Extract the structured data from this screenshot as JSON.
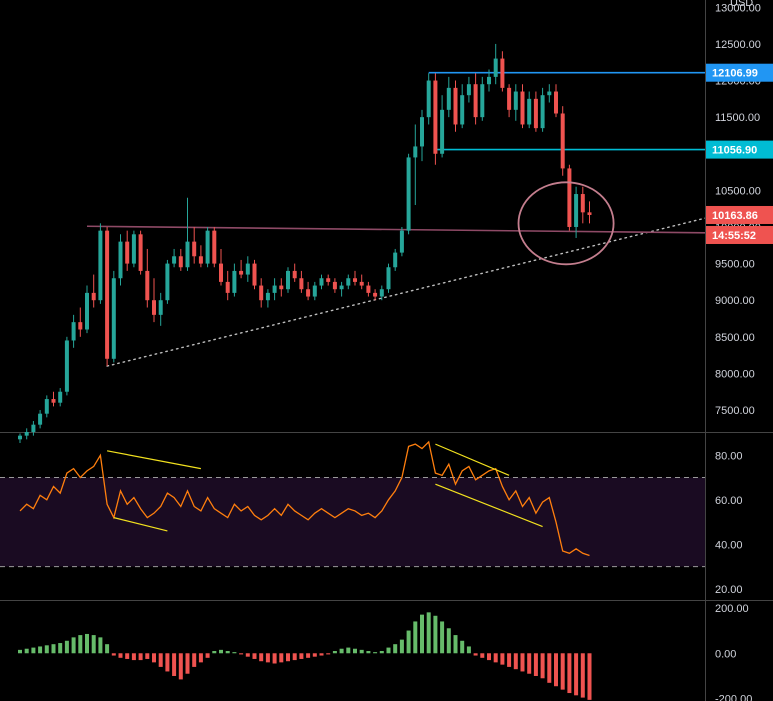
{
  "chart_data": {
    "type": "candlestick",
    "currency": "USD",
    "colors": {
      "up": "#26a69a",
      "down": "#ef5350",
      "background": "#000000",
      "rsi_band": "#1a0b22",
      "rsi_line": "#ff7f0e",
      "divergence": "#f2e11e",
      "resistance": "#2196f3",
      "support": "#00bcd4",
      "horizontal": "#8e4a66",
      "circle": "#c47e8e",
      "hist_up": "#66bb6a",
      "hist_down": "#ef5350",
      "axis_text": "#d1d4dc",
      "price_tag_red": "#ef5350",
      "divider": "#444444"
    },
    "price_axis": {
      "ticks": [
        7500,
        8000,
        8500,
        9000,
        9500,
        10000,
        10500,
        11000,
        11500,
        12000,
        12500,
        13000
      ],
      "tick_labels": [
        "7500.00",
        "8000.00",
        "8500.00",
        "9000.00",
        "9500.00",
        "10000.00",
        "10500.00",
        "11000.00",
        "11500.00",
        "12000.00",
        "12500.00",
        "13000.00"
      ],
      "range": [
        7200,
        13100
      ]
    },
    "price_tags": [
      {
        "label": "12106.99",
        "value": 12106.99,
        "color": "#2196f3"
      },
      {
        "label": "11056.90",
        "value": 11056.9,
        "color": "#00bcd4"
      },
      {
        "label": "10163.86",
        "value": 10163.86,
        "color": "#ef5350"
      },
      {
        "label": "14:55:52",
        "value": 9880,
        "color": "#ef5350"
      }
    ],
    "levels": [
      {
        "name": "top-resistance",
        "value": 12106.99,
        "from": 61,
        "to": 96,
        "color": "#2196f3"
      },
      {
        "name": "support",
        "value": 11056.9,
        "from": 62,
        "to": 96,
        "color": "#00bcd4"
      },
      {
        "name": "horizontal-level",
        "from": 10,
        "from_value": 10010,
        "to": 96,
        "to_value": 9920,
        "color": "#8e4a66"
      }
    ],
    "trendline": {
      "from": 13,
      "from_value": 8100,
      "to": 104,
      "to_value": 10160
    },
    "circle": {
      "center_index": 81.5,
      "center_value": 10050,
      "rx_bars": 6.5,
      "ry_value": 560
    },
    "candles": [
      [
        7100,
        7180,
        7050,
        7150
      ],
      [
        7150,
        7250,
        7100,
        7200
      ],
      [
        7200,
        7350,
        7150,
        7300
      ],
      [
        7300,
        7500,
        7250,
        7450
      ],
      [
        7450,
        7700,
        7400,
        7650
      ],
      [
        7650,
        7750,
        7550,
        7600
      ],
      [
        7600,
        7800,
        7550,
        7750
      ],
      [
        7750,
        8500,
        7700,
        8450
      ],
      [
        8450,
        8800,
        8350,
        8700
      ],
      [
        8700,
        8900,
        8500,
        8600
      ],
      [
        8600,
        9200,
        8550,
        9100
      ],
      [
        9100,
        9350,
        8900,
        9000
      ],
      [
        9000,
        10050,
        8950,
        9950
      ],
      [
        9950,
        10000,
        8100,
        8200
      ],
      [
        8200,
        9400,
        8150,
        9300
      ],
      [
        9300,
        9900,
        9200,
        9800
      ],
      [
        9800,
        9950,
        9400,
        9500
      ],
      [
        9500,
        9950,
        9450,
        9900
      ],
      [
        9900,
        9950,
        9350,
        9400
      ],
      [
        9400,
        9700,
        8900,
        9000
      ],
      [
        9000,
        9300,
        8700,
        8800
      ],
      [
        8800,
        9100,
        8650,
        9000
      ],
      [
        9000,
        9550,
        8950,
        9500
      ],
      [
        9500,
        9700,
        9450,
        9600
      ],
      [
        9600,
        9700,
        9400,
        9450
      ],
      [
        9450,
        10400,
        9400,
        9800
      ],
      [
        9800,
        10000,
        9500,
        9600
      ],
      [
        9600,
        9750,
        9450,
        9500
      ],
      [
        9500,
        10000,
        9450,
        9950
      ],
      [
        9950,
        10000,
        9450,
        9500
      ],
      [
        9500,
        9700,
        9200,
        9250
      ],
      [
        9250,
        9400,
        9000,
        9100
      ],
      [
        9100,
        9500,
        9050,
        9400
      ],
      [
        9400,
        9550,
        9300,
        9350
      ],
      [
        9350,
        9600,
        9250,
        9500
      ],
      [
        9500,
        9550,
        9150,
        9200
      ],
      [
        9200,
        9300,
        8900,
        9000
      ],
      [
        9000,
        9150,
        8900,
        9100
      ],
      [
        9100,
        9300,
        9000,
        9200
      ],
      [
        9200,
        9300,
        9050,
        9150
      ],
      [
        9150,
        9450,
        9100,
        9400
      ],
      [
        9400,
        9500,
        9250,
        9300
      ],
      [
        9300,
        9400,
        9100,
        9150
      ],
      [
        9150,
        9250,
        9000,
        9050
      ],
      [
        9050,
        9250,
        9000,
        9200
      ],
      [
        9200,
        9350,
        9150,
        9300
      ],
      [
        9300,
        9350,
        9200,
        9250
      ],
      [
        9250,
        9300,
        9100,
        9150
      ],
      [
        9150,
        9250,
        9050,
        9200
      ],
      [
        9200,
        9350,
        9150,
        9300
      ],
      [
        9300,
        9400,
        9200,
        9250
      ],
      [
        9250,
        9350,
        9150,
        9200
      ],
      [
        9200,
        9250,
        9050,
        9100
      ],
      [
        9100,
        9150,
        9000,
        9050
      ],
      [
        9050,
        9200,
        9000,
        9150
      ],
      [
        9150,
        9500,
        9100,
        9450
      ],
      [
        9450,
        9700,
        9400,
        9650
      ],
      [
        9650,
        10000,
        9600,
        9950
      ],
      [
        9950,
        11000,
        9900,
        10950
      ],
      [
        10950,
        11400,
        10300,
        11100
      ],
      [
        11100,
        11600,
        10900,
        11500
      ],
      [
        11500,
        12100,
        11400,
        12000
      ],
      [
        12000,
        12100,
        10850,
        11000
      ],
      [
        11000,
        11800,
        10950,
        11600
      ],
      [
        11600,
        12050,
        11500,
        11900
      ],
      [
        11900,
        12000,
        11300,
        11400
      ],
      [
        11400,
        11950,
        11350,
        11800
      ],
      [
        11800,
        12050,
        11700,
        11950
      ],
      [
        11950,
        12100,
        11400,
        11500
      ],
      [
        11500,
        12050,
        11450,
        11950
      ],
      [
        11950,
        12150,
        11850,
        12050
      ],
      [
        12050,
        12500,
        11950,
        12300
      ],
      [
        12300,
        12400,
        11850,
        11900
      ],
      [
        11900,
        11950,
        11500,
        11600
      ],
      [
        11600,
        11950,
        11450,
        11850
      ],
      [
        11850,
        11950,
        11350,
        11400
      ],
      [
        11400,
        11850,
        11350,
        11750
      ],
      [
        11750,
        11850,
        11300,
        11350
      ],
      [
        11350,
        11900,
        11300,
        11800
      ],
      [
        11800,
        11950,
        11700,
        11850
      ],
      [
        11850,
        11950,
        11500,
        11550
      ],
      [
        11550,
        11650,
        10700,
        10800
      ],
      [
        10800,
        10850,
        9950,
        10000
      ],
      [
        10000,
        10550,
        9850,
        10450
      ],
      [
        10450,
        10550,
        10050,
        10200
      ],
      [
        10200,
        10350,
        10050,
        10163.86
      ]
    ],
    "rsi": {
      "axis_ticks": [
        20,
        40,
        60,
        80
      ],
      "tick_labels": [
        "20.00",
        "40.00",
        "60.00",
        "80.00"
      ],
      "range": [
        15,
        90
      ],
      "band": [
        30,
        70
      ],
      "values": [
        55,
        58,
        56,
        62,
        60,
        66,
        63,
        72,
        74,
        70,
        73,
        75,
        80,
        58,
        52,
        64,
        58,
        61,
        56,
        52,
        54,
        57,
        63,
        61,
        57,
        64,
        57,
        55,
        61,
        56,
        54,
        52,
        58,
        55,
        57,
        53,
        51,
        53,
        56,
        53,
        58,
        55,
        53,
        51,
        54,
        56,
        54,
        52,
        54,
        56,
        55,
        53,
        54,
        52,
        55,
        60,
        64,
        70,
        84,
        85,
        83,
        86,
        72,
        71,
        76,
        67,
        73,
        75,
        69,
        71,
        73,
        74,
        66,
        60,
        64,
        57,
        61,
        54,
        59,
        61,
        50,
        37,
        36,
        38,
        36,
        35
      ],
      "divergence_lines": [
        {
          "from": 13,
          "from_value": 82,
          "to": 27,
          "to_value": 74
        },
        {
          "from": 14,
          "from_value": 52,
          "to": 22,
          "to_value": 46
        },
        {
          "from": 62,
          "from_value": 85,
          "to": 73,
          "to_value": 71
        },
        {
          "from": 62,
          "from_value": 67,
          "to": 78,
          "to_value": 48
        }
      ]
    },
    "histogram": {
      "axis_ticks": [
        -200,
        0,
        200
      ],
      "tick_labels": [
        "-200.00",
        "0.00",
        "200.00"
      ],
      "range": [
        -210,
        230
      ],
      "values": [
        15,
        20,
        25,
        30,
        35,
        40,
        45,
        55,
        70,
        80,
        85,
        80,
        70,
        40,
        -10,
        -20,
        -25,
        -30,
        -30,
        -25,
        -40,
        -60,
        -80,
        -100,
        -115,
        -90,
        -60,
        -40,
        -20,
        10,
        15,
        10,
        5,
        -5,
        -15,
        -25,
        -35,
        -40,
        -45,
        -40,
        -35,
        -30,
        -25,
        -20,
        -15,
        -10,
        -5,
        10,
        20,
        25,
        20,
        15,
        10,
        5,
        10,
        25,
        40,
        60,
        100,
        140,
        170,
        180,
        165,
        140,
        110,
        80,
        55,
        30,
        -10,
        -20,
        -30,
        -40,
        -50,
        -60,
        -70,
        -80,
        -90,
        -100,
        -110,
        -130,
        -145,
        -160,
        -175,
        -185,
        -195,
        -205
      ]
    }
  },
  "axis": {
    "currency_label": "USD"
  }
}
